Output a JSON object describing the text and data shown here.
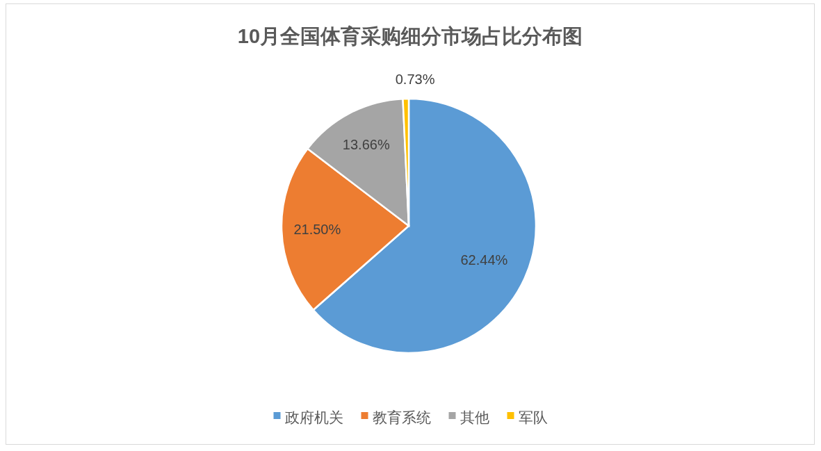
{
  "chart_data": {
    "type": "pie",
    "title": "10月全国体育采购细分市场占比分布图",
    "categories": [
      "政府机关",
      "教育系统",
      "其他",
      "军队"
    ],
    "values": [
      62.44,
      21.5,
      13.66,
      0.73
    ],
    "value_labels": [
      "62.44%",
      "21.50%",
      "13.66%",
      "0.73%"
    ],
    "colors": [
      "#5b9bd5",
      "#ed7d31",
      "#a5a5a5",
      "#ffc000"
    ],
    "legend": "bottom"
  }
}
